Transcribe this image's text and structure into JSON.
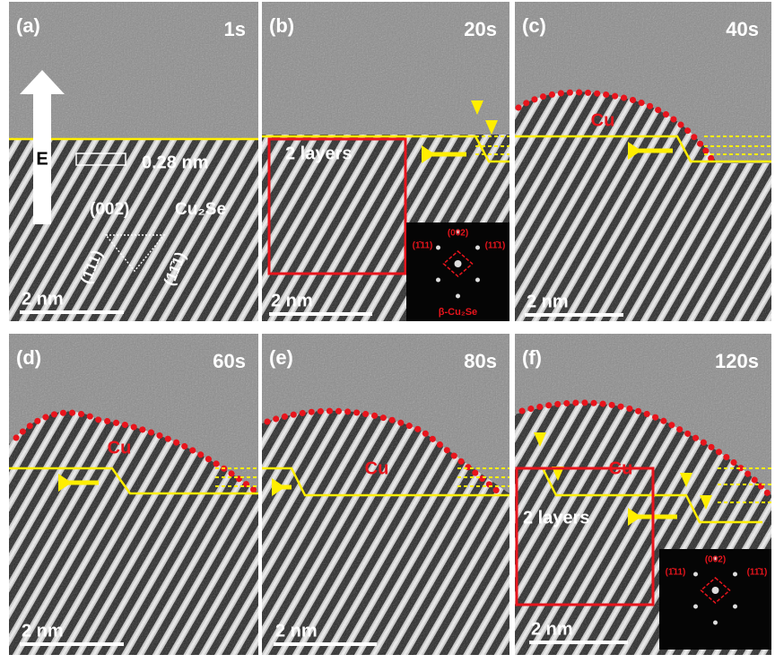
{
  "panels": [
    {
      "label": "(a)",
      "time": "1s",
      "scale_bar": "2 nm",
      "field_label": "E",
      "spacing": "0.28 nm",
      "plane": "(002)",
      "phase": "Cu₂Se",
      "planes": [
        "(1̄11)",
        "(11̄1)"
      ]
    },
    {
      "label": "(b)",
      "time": "20s",
      "scale_bar": "2 nm",
      "annotation": "2 layers",
      "inset": {
        "top": "(002)",
        "left": "(1̄11)",
        "right": "(11̄1)",
        "caption": "β-Cu₂Se"
      }
    },
    {
      "label": "(c)",
      "time": "40s",
      "scale_bar": "2 nm",
      "element": "Cu"
    },
    {
      "label": "(d)",
      "time": "60s",
      "scale_bar": "2 nm",
      "element": "Cu"
    },
    {
      "label": "(e)",
      "time": "80s",
      "scale_bar": "2 nm",
      "element": "Cu"
    },
    {
      "label": "(f)",
      "time": "120s",
      "scale_bar": "2 nm",
      "element": "Cu",
      "annotation": "2 layers",
      "inset": {
        "top": "(002)",
        "left": "(1̄11)",
        "right": "(11̄1)"
      }
    }
  ]
}
